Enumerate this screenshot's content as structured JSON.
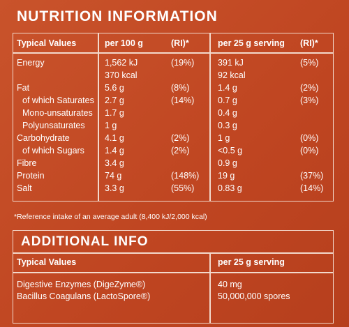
{
  "nutrition": {
    "title": "NUTRITION INFORMATION",
    "headers": [
      "Typical Values",
      "per 100 g",
      "(RI)*",
      "per 25 g serving",
      "(RI)*"
    ],
    "rows": [
      [
        "Energy",
        "1,562 kJ",
        "(19%)",
        "391 kJ",
        "(5%)"
      ],
      [
        null,
        "370 kcal",
        null,
        "92 kcal",
        null
      ],
      [
        "Fat",
        "5.6 g",
        "(8%)",
        "1.4 g",
        "(2%)"
      ],
      [
        "of which Saturates",
        "2.7 g",
        "(14%)",
        "0.7 g",
        "(3%)"
      ],
      [
        "Mono-unsaturates",
        "1.7 g",
        null,
        "0.4 g",
        null
      ],
      [
        "Polyunsaturates",
        "1 g",
        null,
        "0.3 g",
        null
      ],
      [
        "Carbohydrate",
        "4.1 g",
        "(2%)",
        "1 g",
        "(0%)"
      ],
      [
        "of which Sugars",
        "1.4 g",
        "(2%)",
        "<0.5 g",
        "(0%)"
      ],
      [
        "Fibre",
        "3.4 g",
        null,
        "0.9 g",
        null
      ],
      [
        "Protein",
        "74 g",
        "(148%)",
        "19 g",
        "(37%)"
      ],
      [
        "Salt",
        "3.3 g",
        "(55%)",
        "0.83 g",
        "(14%)"
      ]
    ],
    "footnote": "*Reference intake of an average adult (8,400 kJ/2,000 kcal)"
  },
  "additional": {
    "title": "ADDITIONAL INFO",
    "headers": [
      "Typical Values",
      "per 25 g serving"
    ],
    "rows": [
      [
        "Digestive Enzymes (DigeZyme®)",
        "40 mg"
      ],
      [
        "Bacillus Coagulans (LactoSpore®)",
        "50,000,000 spores"
      ]
    ]
  }
}
